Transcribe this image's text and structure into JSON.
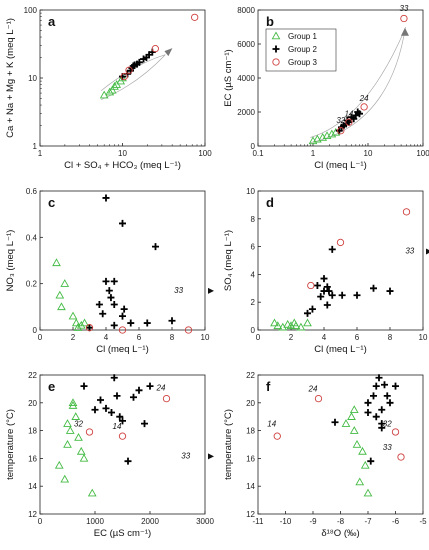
{
  "colors": {
    "group1": "#44bb44",
    "group2": "#000000",
    "group3": "#d04040",
    "arrow": "#777777",
    "trend": "#aaaaaa"
  },
  "legend": [
    "Group 1",
    "Group 2",
    "Group 3"
  ],
  "chart_data": [
    {
      "id": "a",
      "type": "scatter",
      "label": "a",
      "xlabel": "Cl + SO₄ + HCO₃ (meq L⁻¹)",
      "ylabel": "Ca + Na + Mg + K (meq L⁻¹)",
      "xscale": "log",
      "yscale": "log",
      "xlim": [
        1,
        100
      ],
      "ylim": [
        1,
        100
      ],
      "xticks": [
        "1",
        "10",
        "100"
      ],
      "yticks": [
        "1",
        "10",
        "100"
      ],
      "series": [
        {
          "group": "Group 1",
          "points": [
            [
              6,
              5.6
            ],
            [
              7,
              6.2
            ],
            [
              7.5,
              6.6
            ],
            [
              8,
              7.5
            ],
            [
              8.5,
              8
            ],
            [
              9.5,
              9
            ],
            [
              10,
              10
            ]
          ]
        },
        {
          "group": "Group 2",
          "points": [
            [
              10,
              10.5
            ],
            [
              11.5,
              11.5
            ],
            [
              12.5,
              12.8
            ],
            [
              13,
              14
            ],
            [
              13.5,
              15
            ],
            [
              14,
              15.5
            ],
            [
              15,
              16
            ],
            [
              16,
              17
            ],
            [
              18,
              19
            ],
            [
              19.5,
              20
            ],
            [
              21,
              22
            ],
            [
              23,
              24
            ]
          ]
        },
        {
          "group": "Group 3",
          "points": [
            [
              10.5,
              10.5
            ],
            [
              12,
              13
            ],
            [
              25,
              27
            ],
            [
              75,
              78
            ]
          ]
        }
      ],
      "annotations": []
    },
    {
      "id": "b",
      "type": "scatter",
      "label": "b",
      "xlabel": "Cl (meq L⁻¹)",
      "ylabel": "EC (µS cm⁻¹)",
      "xscale": "log",
      "yscale": "linear",
      "xlim": [
        0.1,
        100
      ],
      "ylim": [
        0,
        8000
      ],
      "xticks": [
        "0.1",
        "1",
        "10",
        "100"
      ],
      "yticks": [
        "0",
        "2000",
        "4000",
        "6000",
        "8000"
      ],
      "series": [
        {
          "group": "Group 1",
          "points": [
            [
              1,
              300
            ],
            [
              1.2,
              400
            ],
            [
              1.5,
              500
            ],
            [
              1.8,
              600
            ],
            [
              2.2,
              700
            ],
            [
              2.6,
              800
            ]
          ]
        },
        {
          "group": "Group 2",
          "points": [
            [
              3,
              900
            ],
            [
              3.3,
              1100
            ],
            [
              3.6,
              1200
            ],
            [
              4,
              1300
            ],
            [
              4.2,
              1500
            ],
            [
              4.5,
              1400
            ],
            [
              5,
              1700
            ],
            [
              5.5,
              1600
            ],
            [
              6,
              1800
            ],
            [
              6.5,
              2000
            ],
            [
              7,
              1900
            ]
          ]
        },
        {
          "group": "Group 3",
          "points": [
            [
              3.2,
              900
            ],
            [
              4.5,
              1400
            ],
            [
              8.5,
              2300
            ],
            [
              45,
              7500
            ]
          ]
        }
      ],
      "annotations": [
        {
          "text": "33",
          "x": 45,
          "y": 7950
        },
        {
          "text": "24",
          "x": 8.5,
          "y": 2650
        },
        {
          "text": "14",
          "x": 4.5,
          "y": 1750
        },
        {
          "text": "32",
          "x": 3.2,
          "y": 1350
        }
      ]
    },
    {
      "id": "c",
      "type": "scatter",
      "label": "c",
      "xlabel": "Cl (meq L⁻¹)",
      "ylabel": "NO₃ (meq L⁻¹)",
      "xscale": "linear",
      "yscale": "linear",
      "xlim": [
        0,
        10
      ],
      "ylim": [
        0,
        0.6
      ],
      "xticks": [
        "0",
        "2",
        "4",
        "6",
        "8",
        "10"
      ],
      "yticks": [
        "0",
        "0.2",
        "0.4",
        "0.6"
      ],
      "series": [
        {
          "group": "Group 1",
          "points": [
            [
              1,
              0.29
            ],
            [
              1.5,
              0.2
            ],
            [
              1.2,
              0.15
            ],
            [
              1.3,
              0.1
            ],
            [
              2,
              0.06
            ],
            [
              2.2,
              0.03
            ],
            [
              2.5,
              0.02
            ],
            [
              2.3,
              0.01
            ],
            [
              2.7,
              0.03
            ]
          ]
        },
        {
          "group": "Group 2",
          "points": [
            [
              4,
              0.57
            ],
            [
              5,
              0.46
            ],
            [
              7,
              0.36
            ],
            [
              4,
              0.21
            ],
            [
              4.5,
              0.21
            ],
            [
              4.2,
              0.17
            ],
            [
              4.3,
              0.14
            ],
            [
              3.6,
              0.11
            ],
            [
              4.5,
              0.11
            ],
            [
              5.1,
              0.09
            ],
            [
              3.8,
              0.07
            ],
            [
              5,
              0.06
            ],
            [
              5.5,
              0.03
            ],
            [
              6.5,
              0.03
            ],
            [
              8,
              0.04
            ],
            [
              3,
              0.01
            ],
            [
              4.5,
              0.02
            ]
          ]
        },
        {
          "group": "Group 3",
          "points": [
            [
              3,
              0.01
            ],
            [
              5,
              0
            ],
            [
              9,
              0
            ]
          ]
        }
      ],
      "annotations": [
        {
          "text": "33",
          "x": 8.4,
          "y": 0.16
        }
      ]
    },
    {
      "id": "d",
      "type": "scatter",
      "label": "d",
      "xlabel": "Cl (meq L⁻¹)",
      "ylabel": "SO₄ (meq L⁻¹)",
      "xscale": "linear",
      "yscale": "linear",
      "xlim": [
        0,
        10
      ],
      "ylim": [
        0,
        10
      ],
      "xticks": [
        "0",
        "2",
        "4",
        "6",
        "8",
        "10"
      ],
      "yticks": [
        "0",
        "2",
        "4",
        "6",
        "8",
        "10"
      ],
      "series": [
        {
          "group": "Group 1",
          "points": [
            [
              1,
              0.5
            ],
            [
              1.2,
              0.3
            ],
            [
              1.5,
              0.2
            ],
            [
              1.8,
              0.4
            ],
            [
              2,
              0.3
            ],
            [
              2.3,
              0.3
            ],
            [
              2.6,
              0.2
            ],
            [
              3,
              0.5
            ],
            [
              2.2,
              0.5
            ]
          ]
        },
        {
          "group": "Group 2",
          "points": [
            [
              4.5,
              5.8
            ],
            [
              3.6,
              3.2
            ],
            [
              4,
              3.7
            ],
            [
              4.2,
              3.1
            ],
            [
              4.3,
              2.8
            ],
            [
              4.5,
              2.5
            ],
            [
              3.8,
              2.4
            ],
            [
              4.2,
              1.8
            ],
            [
              5.1,
              2.5
            ],
            [
              6,
              2.5
            ],
            [
              3.3,
              1.5
            ],
            [
              3,
              1.2
            ],
            [
              7,
              3
            ],
            [
              8,
              2.8
            ],
            [
              4,
              2.8
            ]
          ]
        },
        {
          "group": "Group 3",
          "points": [
            [
              9,
              8.5
            ],
            [
              5,
              6.3
            ],
            [
              3.2,
              3.2
            ]
          ]
        }
      ],
      "annotations": [
        {
          "text": "33",
          "x": 9.2,
          "y": 5.5
        }
      ]
    },
    {
      "id": "e",
      "type": "scatter",
      "label": "e",
      "xlabel": "EC (µS cm⁻¹)",
      "ylabel": "temperature (°C)",
      "xscale": "linear",
      "yscale": "linear",
      "xlim": [
        0,
        3000
      ],
      "ylim": [
        12,
        22
      ],
      "xticks": [
        "0",
        "1000",
        "2000",
        "3000"
      ],
      "yticks": [
        "12",
        "14",
        "16",
        "18",
        "20",
        "22"
      ],
      "series": [
        {
          "group": "Group 1",
          "points": [
            [
              350,
              15.5
            ],
            [
              450,
              14.5
            ],
            [
              500,
              18.5
            ],
            [
              600,
              19.8
            ],
            [
              650,
              19
            ],
            [
              700,
              17.5
            ],
            [
              550,
              18
            ],
            [
              750,
              16.5
            ],
            [
              800,
              16
            ],
            [
              950,
              13.5
            ],
            [
              600,
              20
            ],
            [
              500,
              17
            ]
          ]
        },
        {
          "group": "Group 2",
          "points": [
            [
              800,
              21.2
            ],
            [
              1000,
              19.5
            ],
            [
              1100,
              20.2
            ],
            [
              1200,
              19.6
            ],
            [
              1300,
              19.3
            ],
            [
              1350,
              21.8
            ],
            [
              1400,
              20.5
            ],
            [
              1500,
              18.7
            ],
            [
              1600,
              15.8
            ],
            [
              1700,
              20.4
            ],
            [
              1800,
              20.9
            ],
            [
              1900,
              18.5
            ],
            [
              2000,
              21.2
            ],
            [
              1450,
              19
            ]
          ]
        },
        {
          "group": "Group 3",
          "points": [
            [
              2300,
              20.3
            ],
            [
              900,
              17.9
            ],
            [
              1500,
              17.6
            ]
          ]
        }
      ],
      "annotations": [
        {
          "text": "24",
          "x": 2200,
          "y": 20.9
        },
        {
          "text": "32",
          "x": 700,
          "y": 18.3
        },
        {
          "text": "14",
          "x": 1400,
          "y": 18.1
        },
        {
          "text": "33",
          "x": 2650,
          "y": 16
        }
      ]
    },
    {
      "id": "f",
      "type": "scatter",
      "label": "f",
      "xlabel": "δ¹⁸O (‰)",
      "ylabel": "temperature (°C)",
      "xscale": "linear",
      "yscale": "linear",
      "xlim": [
        -11,
        -5
      ],
      "ylim": [
        12,
        22
      ],
      "xticks": [
        "-11",
        "-10",
        "-9",
        "-8",
        "-7",
        "-6",
        "-5"
      ],
      "yticks": [
        "12",
        "14",
        "16",
        "18",
        "20",
        "22"
      ],
      "series": [
        {
          "group": "Group 1",
          "points": [
            [
              -7.8,
              18.5
            ],
            [
              -7.6,
              19
            ],
            [
              -7.5,
              19.5
            ],
            [
              -7.4,
              17
            ],
            [
              -7.2,
              16.5
            ],
            [
              -7.1,
              15.5
            ],
            [
              -7.3,
              14.3
            ],
            [
              -7,
              13.5
            ],
            [
              -7.5,
              18
            ]
          ]
        },
        {
          "group": "Group 2",
          "points": [
            [
              -8.2,
              18.6
            ],
            [
              -7,
              19.3
            ],
            [
              -7,
              20
            ],
            [
              -6.7,
              21.2
            ],
            [
              -6.6,
              21.8
            ],
            [
              -6.4,
              21.3
            ],
            [
              -6.3,
              20.5
            ],
            [
              -6.5,
              19.5
            ],
            [
              -6.7,
              19
            ],
            [
              -6.5,
              18.5
            ],
            [
              -6.8,
              20.5
            ],
            [
              -6,
              21.2
            ],
            [
              -6.2,
              20
            ],
            [
              -6.9,
              15.8
            ],
            [
              -6.5,
              18.2
            ]
          ]
        },
        {
          "group": "Group 3",
          "points": [
            [
              -8.8,
              20.3
            ],
            [
              -10.3,
              17.6
            ],
            [
              -6,
              17.9
            ],
            [
              -5.8,
              16.1
            ]
          ]
        }
      ],
      "annotations": [
        {
          "text": "24",
          "x": -9,
          "y": 20.8
        },
        {
          "text": "14",
          "x": -10.5,
          "y": 18.3
        },
        {
          "text": "32",
          "x": -6.3,
          "y": 18.3
        },
        {
          "text": "33",
          "x": -6.3,
          "y": 16.6
        }
      ]
    }
  ]
}
